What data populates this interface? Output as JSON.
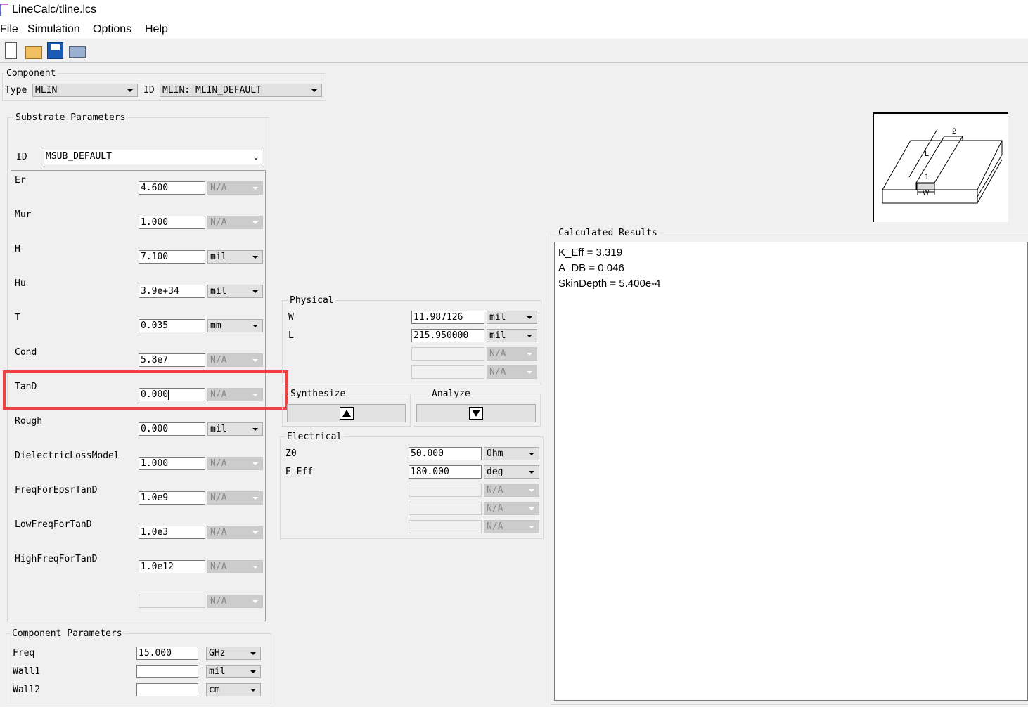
{
  "window": {
    "title": "LineCalc/tline.lcs"
  },
  "menu": [
    "File",
    "Simulation",
    "Options",
    "Help"
  ],
  "toolbar": [
    "new-icon",
    "open-icon",
    "save-icon",
    "print-icon"
  ],
  "component": {
    "label": "Component",
    "type_label": "Type",
    "type_value": "MLIN",
    "id_label": "ID",
    "id_value": "MLIN: MLIN_DEFAULT"
  },
  "substrate": {
    "label": "Substrate Parameters",
    "id_label": "ID",
    "id_value": "MSUB_DEFAULT",
    "rows": [
      {
        "name": "Er",
        "value": "4.600",
        "unit": "N/A",
        "enabled": false
      },
      {
        "name": "Mur",
        "value": "1.000",
        "unit": "N/A",
        "enabled": false
      },
      {
        "name": "H",
        "value": "7.100",
        "unit": "mil",
        "enabled": true
      },
      {
        "name": "Hu",
        "value": "3.9e+34",
        "unit": "mil",
        "enabled": true
      },
      {
        "name": "T",
        "value": "0.035",
        "unit": "mm",
        "enabled": true
      },
      {
        "name": "Cond",
        "value": "5.8e7",
        "unit": "N/A",
        "enabled": false
      },
      {
        "name": "TanD",
        "value": "0.000",
        "unit": "N/A",
        "enabled": false
      },
      {
        "name": "Rough",
        "value": "0.000",
        "unit": "mil",
        "enabled": true
      },
      {
        "name": "DielectricLossModel",
        "value": "1.000",
        "unit": "N/A",
        "enabled": false
      },
      {
        "name": "FreqForEpsrTanD",
        "value": "1.0e9",
        "unit": "N/A",
        "enabled": false
      },
      {
        "name": "LowFreqForTanD",
        "value": "1.0e3",
        "unit": "N/A",
        "enabled": false
      },
      {
        "name": "HighFreqForTanD",
        "value": "1.0e12",
        "unit": "N/A",
        "enabled": false
      },
      {
        "name": "",
        "value": "",
        "unit": "N/A",
        "enabled": false,
        "blank": true
      }
    ]
  },
  "component_params": {
    "label": "Component Parameters",
    "rows": [
      {
        "name": "Freq",
        "value": "15.000",
        "unit": "GHz"
      },
      {
        "name": "Wall1",
        "value": "",
        "unit": "mil"
      },
      {
        "name": "Wall2",
        "value": "",
        "unit": "cm"
      }
    ]
  },
  "physical": {
    "label": "Physical",
    "rows": [
      {
        "name": "W",
        "value": "11.987126",
        "unit": "mil",
        "enabled": true
      },
      {
        "name": "L",
        "value": "215.950000",
        "unit": "mil",
        "enabled": true
      },
      {
        "name": "",
        "value": "",
        "unit": "N/A",
        "enabled": false,
        "blank": true
      },
      {
        "name": "",
        "value": "",
        "unit": "N/A",
        "enabled": false,
        "blank": true
      }
    ]
  },
  "synthesize": {
    "label": "Synthesize"
  },
  "analyze": {
    "label": "Analyze"
  },
  "electrical": {
    "label": "Electrical",
    "rows": [
      {
        "name": "Z0",
        "value": "50.000",
        "unit": "Ohm",
        "enabled": true
      },
      {
        "name": "E_Eff",
        "value": "180.000",
        "unit": "deg",
        "enabled": true
      },
      {
        "name": "",
        "value": "",
        "unit": "N/A",
        "enabled": false,
        "blank": true
      },
      {
        "name": "",
        "value": "",
        "unit": "N/A",
        "enabled": false,
        "blank": true
      },
      {
        "name": "",
        "value": "",
        "unit": "N/A",
        "enabled": false,
        "blank": true
      }
    ]
  },
  "diagram": {
    "labels": [
      "L",
      "1",
      "2",
      "W"
    ]
  },
  "results": {
    "label": "Calculated Results",
    "lines": [
      "K_Eff = 3.319",
      "A_DB = 0.046",
      "SkinDepth = 5.400e-4"
    ]
  },
  "highlight_color": "#f04040"
}
